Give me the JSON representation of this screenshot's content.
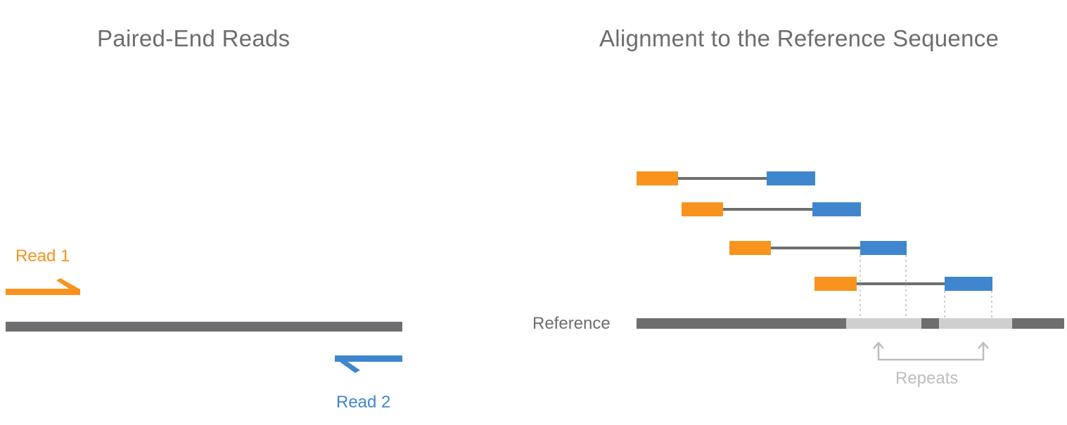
{
  "titles": {
    "left": "Paired-End Reads",
    "right": "Alignment to the Reference Sequence"
  },
  "labels": {
    "read1": "Read 1",
    "read2": "Read 2",
    "reference": "Reference",
    "repeats": "Repeats"
  },
  "colors": {
    "read1": "#f7931e",
    "read2": "#3f86cf",
    "reference": "#6e6e70",
    "repeat_region": "#cfcfcf",
    "repeat_label": "#bdbdbd",
    "title_text": "#6d6d6d"
  },
  "aligned_pairs_count_shown": 4
}
